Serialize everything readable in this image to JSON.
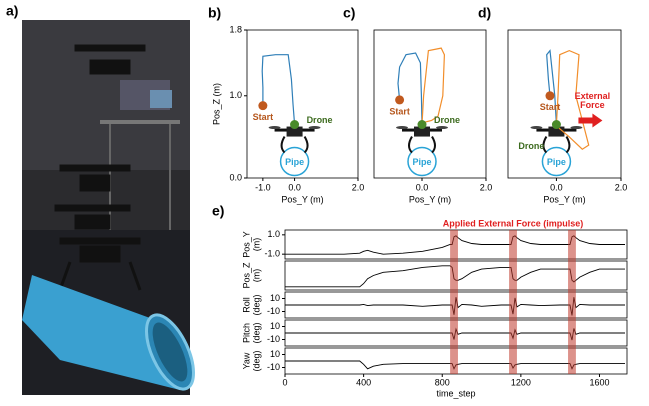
{
  "photo": {
    "label": "a)"
  },
  "chart_data": [
    {
      "type": "trajectory",
      "label": "b)",
      "x_label": "Pos_Y (m)",
      "y_label": "Pos_Z (m)",
      "xlim": [
        -1.5,
        2.0
      ],
      "ylim": [
        0,
        1.8
      ],
      "xticks": [
        {
          "value": -1,
          "label": "-1.0"
        },
        {
          "value": 0,
          "label": "0.0"
        },
        {
          "value": 2,
          "label": "2.0"
        }
      ],
      "yticks": [
        {
          "value": 0,
          "label": "0.0"
        },
        {
          "value": 1,
          "label": "1.0"
        },
        1.8
      ],
      "start": {
        "label": "Start",
        "x": -1.0,
        "y": 0.88
      },
      "drone": {
        "label": "Drone",
        "x": 0,
        "y": 0.65
      },
      "pipe": {
        "label": "Pipe",
        "x": 0,
        "y": 0.2
      },
      "series": [
        {
          "color": "#2f7fb8",
          "x": [
            -1.0,
            -1.0,
            -1.02,
            -1.0,
            -0.6,
            -0.2,
            -0.1,
            -0.05,
            0.0
          ],
          "values": [
            0.88,
            1.1,
            1.3,
            1.48,
            1.5,
            1.5,
            1.2,
            0.9,
            0.65
          ]
        }
      ]
    },
    {
      "type": "trajectory",
      "label": "c)",
      "x_label": "Pos_Y (m)",
      "xlim": [
        -1.5,
        2.0
      ],
      "ylim": [
        0,
        1.8
      ],
      "xticks": [
        {
          "value": 0,
          "label": "0.0"
        },
        {
          "value": 2,
          "label": "2.0"
        }
      ],
      "yticks": [],
      "start": {
        "label": "Start",
        "x": -0.7,
        "y": 0.95
      },
      "drone": {
        "label": "Drone",
        "x": 0,
        "y": 0.65
      },
      "pipe": {
        "label": "Pipe",
        "x": 0,
        "y": 0.2
      },
      "series": [
        {
          "color": "#2f7fb8",
          "x": [
            -0.7,
            -0.75,
            -0.7,
            -0.5,
            -0.2,
            -0.05,
            -0.02,
            0.0
          ],
          "values": [
            0.95,
            1.15,
            1.35,
            1.5,
            1.52,
            1.4,
            1.0,
            0.65
          ]
        },
        {
          "color": "#f28e2b",
          "x": [
            0.0,
            0.05,
            0.2,
            0.6,
            0.7,
            0.65,
            0.5,
            0.3,
            0.1,
            0.0
          ],
          "values": [
            0.65,
            1.0,
            1.55,
            1.58,
            1.5,
            1.0,
            0.75,
            0.7,
            0.68,
            0.65
          ]
        }
      ]
    },
    {
      "type": "trajectory",
      "label": "d)",
      "x_label": "Pos_Y (m)",
      "xlim": [
        -1.5,
        2.0
      ],
      "ylim": [
        0,
        1.8
      ],
      "xticks": [
        {
          "value": 0,
          "label": "0.0"
        },
        {
          "value": 2,
          "label": "2.0"
        }
      ],
      "yticks": [],
      "start": {
        "label": "Start",
        "x": -0.2,
        "y": 1.0
      },
      "drone": {
        "label": "Drone",
        "x": 0,
        "y": 0.65
      },
      "pipe": {
        "label": "Pipe",
        "x": 0,
        "y": 0.2
      },
      "annotation": [
        "External",
        "Force"
      ],
      "series": [
        {
          "color": "#2f7fb8",
          "x": [
            -0.2,
            -0.25,
            -0.3,
            -0.2,
            -0.05,
            0.0
          ],
          "values": [
            1.0,
            1.2,
            1.5,
            1.55,
            1.0,
            0.65
          ]
        },
        {
          "color": "#f28e2b",
          "x": [
            0.0,
            0.05,
            0.1,
            0.4,
            0.7,
            0.6,
            0.8,
            1.0,
            0.8,
            0.4,
            0.1,
            0.0
          ],
          "values": [
            0.65,
            1.0,
            1.5,
            1.55,
            1.5,
            1.0,
            0.7,
            0.4,
            0.35,
            0.5,
            0.6,
            0.65
          ]
        }
      ]
    },
    {
      "type": "timeseries",
      "label": "e)",
      "x_label": "time_step",
      "annotation": "Applied External Force (impulse)",
      "force_bands": [
        [
          840,
          880
        ],
        [
          1140,
          1180
        ],
        [
          1440,
          1480
        ]
      ],
      "xlim": [
        0,
        1740
      ],
      "xticks": [
        0,
        400,
        800,
        1200,
        1600
      ],
      "x": [
        0,
        100,
        200,
        300,
        380,
        400,
        420,
        450,
        500,
        600,
        700,
        800,
        840,
        850,
        860,
        870,
        880,
        900,
        950,
        1000,
        1100,
        1140,
        1150,
        1160,
        1170,
        1180,
        1200,
        1250,
        1300,
        1400,
        1440,
        1450,
        1460,
        1470,
        1480,
        1500,
        1550,
        1600,
        1700,
        1730
      ],
      "subplots": [
        {
          "y_label": [
            "Pos_Y",
            "(m)"
          ],
          "ylim": [
            -1.5,
            1.5
          ],
          "yticks": [
            {
              "value": 1,
              "label": "1.0"
            },
            {
              "value": -1,
              "label": "-1.0"
            }
          ],
          "color": "#000000",
          "values": [
            -1.0,
            -1.0,
            -1.0,
            -1.0,
            -0.9,
            -0.7,
            -0.6,
            -0.8,
            -1.0,
            -0.9,
            -0.7,
            -0.3,
            0,
            0,
            0.8,
            0.9,
            0.7,
            0.4,
            0.1,
            0,
            0,
            0,
            0,
            0.8,
            0.9,
            0.7,
            0.4,
            0.1,
            0,
            0,
            0,
            0,
            0.8,
            0.9,
            0.7,
            0.4,
            0.1,
            0,
            0,
            0
          ]
        },
        {
          "y_label": [
            "Pos_Z",
            "(m)"
          ],
          "ylim": [
            0,
            1.8
          ],
          "yticks": [],
          "color": "#000000",
          "values": [
            0.2,
            0.2,
            0.2,
            0.2,
            0.2,
            0.4,
            0.7,
            0.9,
            1.1,
            1.2,
            1.4,
            1.5,
            1.5,
            1.4,
            0.7,
            0.6,
            0.6,
            0.7,
            1.1,
            1.3,
            1.4,
            1.4,
            1.4,
            0.7,
            0.6,
            0.6,
            0.8,
            1.1,
            1.3,
            1.3,
            1.3,
            1.3,
            0.6,
            0.5,
            0.6,
            0.8,
            1.1,
            1.3,
            1.3,
            1.3
          ]
        },
        {
          "y_label": [
            "Roll",
            "(deg)"
          ],
          "ylim": [
            -20,
            20
          ],
          "yticks": [
            10,
            -10
          ],
          "color": "#000000",
          "values": [
            0,
            0,
            0,
            0,
            0,
            1,
            -1,
            0,
            0,
            0,
            -2,
            0,
            0,
            0,
            -15,
            12,
            -4,
            1,
            0,
            -2,
            0,
            0,
            0,
            -14,
            11,
            -3,
            1,
            0,
            -1,
            0,
            0,
            0,
            -16,
            12,
            -4,
            1,
            0,
            0,
            0,
            0
          ]
        },
        {
          "y_label": [
            "Pitch",
            "(deg)"
          ],
          "ylim": [
            -20,
            20
          ],
          "yticks": [
            10,
            -10
          ],
          "color": "#000000",
          "values": [
            0,
            0,
            0,
            0,
            0,
            0,
            0,
            0,
            0,
            0,
            0,
            0,
            0,
            0,
            -10,
            6,
            -2,
            0,
            0,
            0,
            0,
            0,
            0,
            -8,
            5,
            -2,
            0,
            0,
            0,
            0,
            0,
            0,
            -11,
            7,
            -2,
            0,
            0,
            0,
            0,
            0
          ]
        },
        {
          "y_label": [
            "Yaw",
            "(deg)"
          ],
          "ylim": [
            -20,
            20
          ],
          "yticks": [
            10,
            -10
          ],
          "color": "#000000",
          "values": [
            0,
            0,
            0,
            0,
            0,
            -5,
            -12,
            -8,
            -5,
            -4,
            -4,
            -4,
            -4,
            -4,
            -12,
            -6,
            -5,
            -4,
            -4,
            -4,
            -4,
            -4,
            -4,
            -11,
            -6,
            -5,
            -4,
            -4,
            -4,
            -4,
            -4,
            -4,
            -12,
            -6,
            -5,
            -4,
            -4,
            -4,
            -4,
            -4
          ]
        }
      ]
    }
  ]
}
